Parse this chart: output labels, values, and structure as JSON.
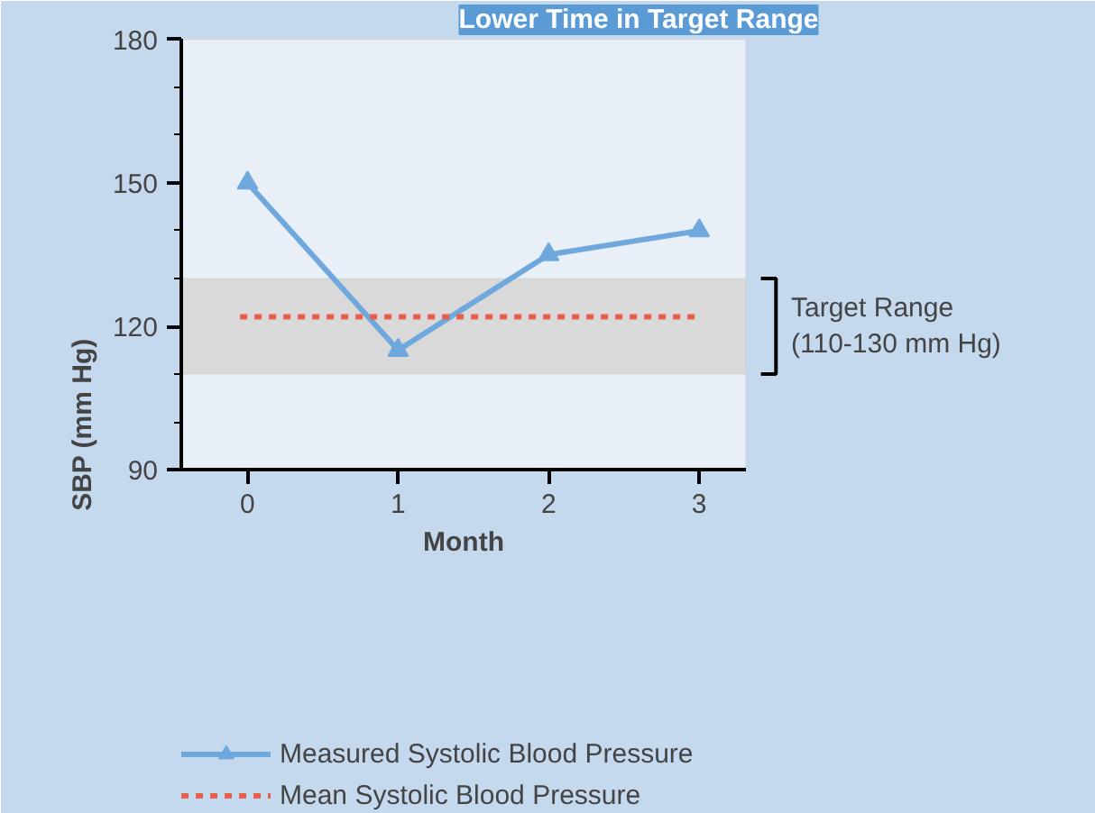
{
  "chart_data": {
    "type": "line",
    "title": "Lower Time in Target Range",
    "xlabel": "Month",
    "ylabel": "SBP (mm Hg)",
    "x": [
      0,
      1,
      2,
      3
    ],
    "series": [
      {
        "name": "Measured Systolic Blood Pressure",
        "color": "#6fa8dc",
        "values": [
          150,
          115,
          135,
          140
        ],
        "marker": "triangle",
        "line_style": "solid"
      },
      {
        "name": "Mean Systolic Blood Pressure",
        "color": "#e8604c",
        "x": [
          -0.05,
          3
        ],
        "values": [
          122,
          122
        ],
        "marker": "none",
        "line_style": "dashed"
      }
    ],
    "bands": [
      {
        "axis": "y",
        "from": 110,
        "to": 130,
        "label": "Target Range\n(110-130 mm Hg)",
        "color": "#d9d9d9"
      }
    ],
    "xlim": [
      -0.44,
      3.31
    ],
    "ylim": [
      90,
      180
    ],
    "xticks": [
      0,
      1,
      2,
      3
    ],
    "yticks": [
      90,
      120,
      150,
      180
    ],
    "grid": false,
    "legend": "bottom"
  }
}
